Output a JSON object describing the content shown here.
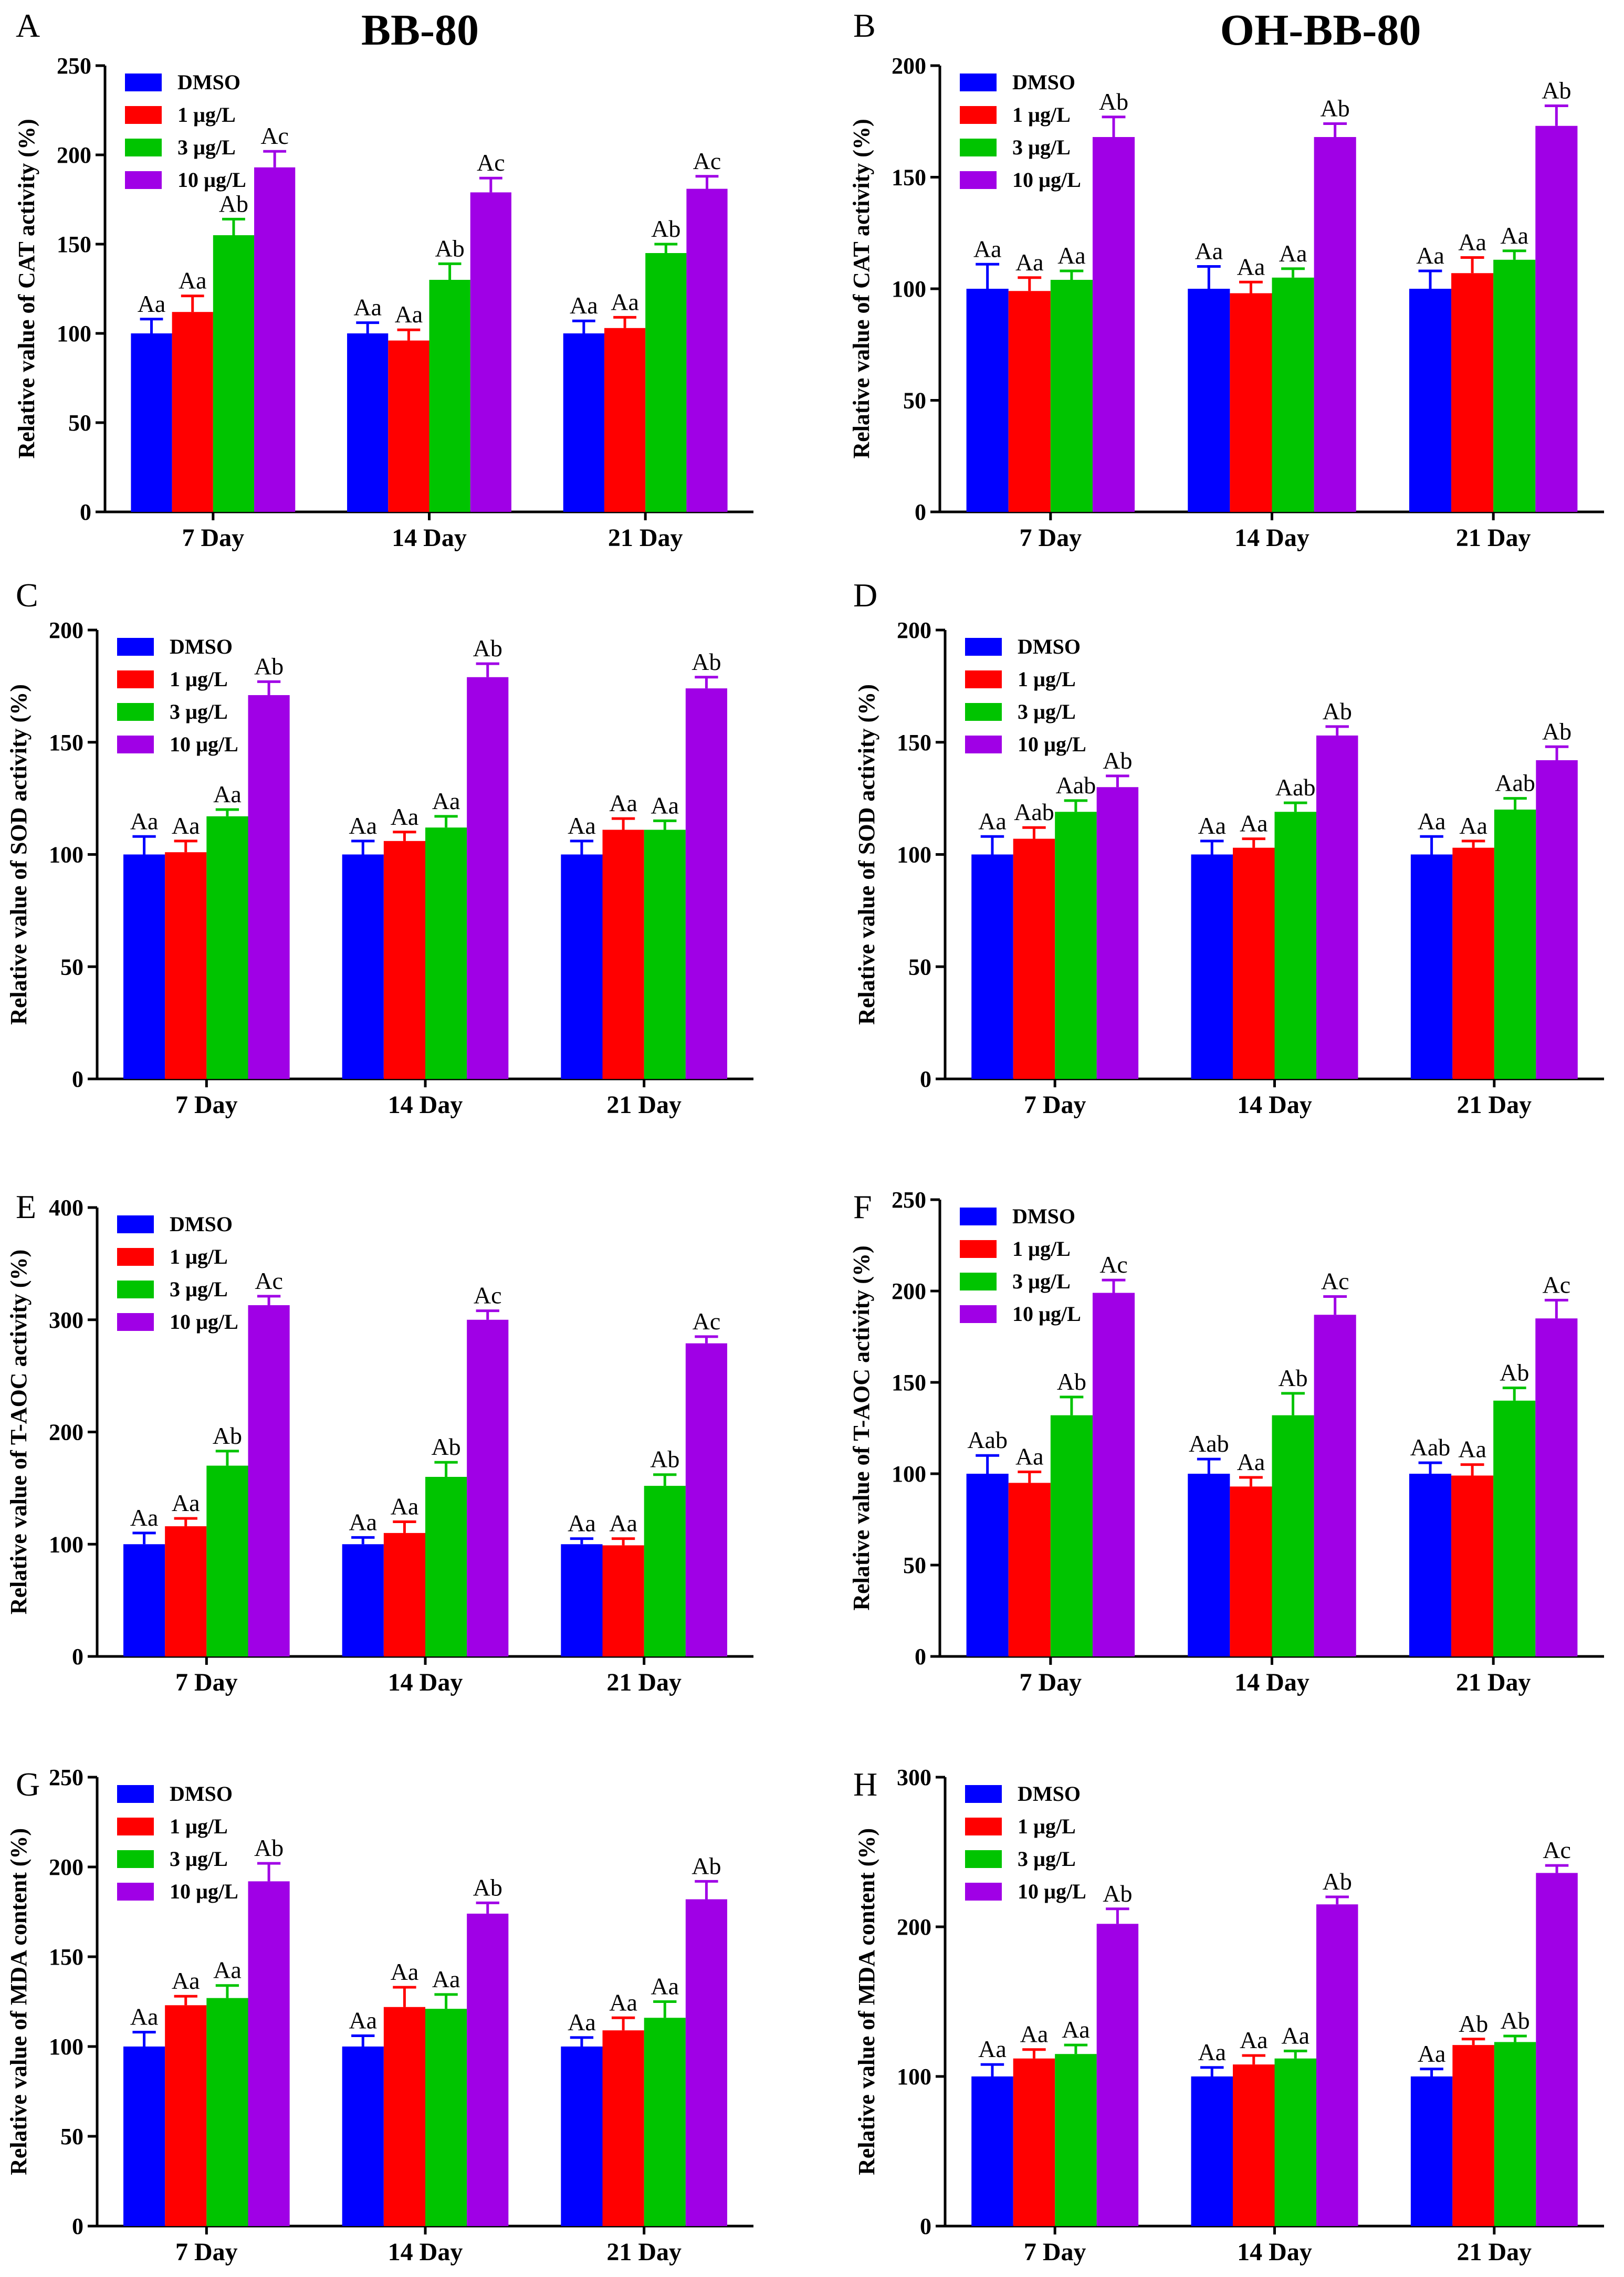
{
  "figure": {
    "group_titles": [
      "BB-80",
      "OH-BB-80"
    ]
  },
  "colors": {
    "DMSO": "#0000ff",
    "1 µg/L": "#ff0000",
    "3 µg/L": "#00c400",
    "10 µg/L": "#a000e6"
  },
  "chart_data": [
    {
      "panel": "A",
      "type": "bar",
      "ylabel": "Relative value of CAT activity (%)",
      "ylim": [
        0,
        250
      ],
      "yticks": [
        0,
        50,
        100,
        150,
        200,
        250
      ],
      "categories": [
        "7 Day",
        "14 Day",
        "21 Day"
      ],
      "legend_position": "top-left",
      "series": [
        {
          "name": "DMSO",
          "values": [
            100,
            100,
            100
          ],
          "errors": [
            8,
            6,
            7
          ],
          "labels": [
            "Aa",
            "Aa",
            "Aa"
          ]
        },
        {
          "name": "1 µg/L",
          "values": [
            112,
            96,
            103
          ],
          "errors": [
            9,
            6,
            6
          ],
          "labels": [
            "Aa",
            "Aa",
            "Aa"
          ]
        },
        {
          "name": "3 µg/L",
          "values": [
            155,
            130,
            145
          ],
          "errors": [
            9,
            9,
            5
          ],
          "labels": [
            "Ab",
            "Ab",
            "Ab"
          ]
        },
        {
          "name": "10 µg/L",
          "values": [
            193,
            179,
            181
          ],
          "errors": [
            9,
            8,
            7
          ],
          "labels": [
            "Ac",
            "Ac",
            "Ac"
          ]
        }
      ]
    },
    {
      "panel": "B",
      "type": "bar",
      "ylabel": "Relative value of CAT activity (%)",
      "ylim": [
        0,
        200
      ],
      "yticks": [
        0,
        50,
        100,
        150,
        200
      ],
      "categories": [
        "7 Day",
        "14 Day",
        "21 Day"
      ],
      "legend_position": "top-left",
      "series": [
        {
          "name": "DMSO",
          "values": [
            100,
            100,
            100
          ],
          "errors": [
            11,
            10,
            8
          ],
          "labels": [
            "Aa",
            "Aa",
            "Aa"
          ]
        },
        {
          "name": "1 µg/L",
          "values": [
            99,
            98,
            107
          ],
          "errors": [
            6,
            5,
            7
          ],
          "labels": [
            "Aa",
            "Aa",
            "Aa"
          ]
        },
        {
          "name": "3 µg/L",
          "values": [
            104,
            105,
            113
          ],
          "errors": [
            4,
            4,
            4
          ],
          "labels": [
            "Aa",
            "Aa",
            "Aa"
          ]
        },
        {
          "name": "10 µg/L",
          "values": [
            168,
            168,
            173
          ],
          "errors": [
            9,
            6,
            9
          ],
          "labels": [
            "Ab",
            "Ab",
            "Ab"
          ]
        }
      ]
    },
    {
      "panel": "C",
      "type": "bar",
      "ylabel": "Relative value of SOD activity (%)",
      "ylim": [
        0,
        200
      ],
      "yticks": [
        0,
        50,
        100,
        150,
        200
      ],
      "categories": [
        "7 Day",
        "14 Day",
        "21 Day"
      ],
      "legend_position": "top-left",
      "series": [
        {
          "name": "DMSO",
          "values": [
            100,
            100,
            100
          ],
          "errors": [
            8,
            6,
            6
          ],
          "labels": [
            "Aa",
            "Aa",
            "Aa"
          ]
        },
        {
          "name": "1 µg/L",
          "values": [
            101,
            106,
            111
          ],
          "errors": [
            5,
            4,
            5
          ],
          "labels": [
            "Aa",
            "Aa",
            "Aa"
          ]
        },
        {
          "name": "3 µg/L",
          "values": [
            117,
            112,
            111
          ],
          "errors": [
            3,
            5,
            4
          ],
          "labels": [
            "Aa",
            "Aa",
            "Aa"
          ]
        },
        {
          "name": "10 µg/L",
          "values": [
            171,
            179,
            174
          ],
          "errors": [
            6,
            6,
            5
          ],
          "labels": [
            "Ab",
            "Ab",
            "Ab"
          ]
        }
      ]
    },
    {
      "panel": "D",
      "type": "bar",
      "ylabel": "Relative value of SOD activity (%)",
      "ylim": [
        0,
        200
      ],
      "yticks": [
        0,
        50,
        100,
        150,
        200
      ],
      "categories": [
        "7 Day",
        "14 Day",
        "21 Day"
      ],
      "legend_position": "top-left",
      "series": [
        {
          "name": "DMSO",
          "values": [
            100,
            100,
            100
          ],
          "errors": [
            8,
            6,
            8
          ],
          "labels": [
            "Aa",
            "Aa",
            "Aa"
          ]
        },
        {
          "name": "1 µg/L",
          "values": [
            107,
            103,
            103
          ],
          "errors": [
            5,
            4,
            3
          ],
          "labels": [
            "Aab",
            "Aa",
            "Aa"
          ]
        },
        {
          "name": "3 µg/L",
          "values": [
            119,
            119,
            120
          ],
          "errors": [
            5,
            4,
            5
          ],
          "labels": [
            "Aab",
            "Aab",
            "Aab"
          ]
        },
        {
          "name": "10 µg/L",
          "values": [
            130,
            153,
            142
          ],
          "errors": [
            5,
            4,
            6
          ],
          "labels": [
            "Ab",
            "Ab",
            "Ab"
          ]
        }
      ]
    },
    {
      "panel": "E",
      "type": "bar",
      "ylabel": "Relative value of T-AOC activity (%)",
      "ylim": [
        0,
        400
      ],
      "yticks": [
        0,
        100,
        200,
        300,
        400
      ],
      "categories": [
        "7 Day",
        "14 Day",
        "21 Day"
      ],
      "legend_position": "top-left",
      "series": [
        {
          "name": "DMSO",
          "values": [
            100,
            100,
            100
          ],
          "errors": [
            10,
            6,
            5
          ],
          "labels": [
            "Aa",
            "Aa",
            "Aa"
          ]
        },
        {
          "name": "1 µg/L",
          "values": [
            116,
            110,
            99
          ],
          "errors": [
            7,
            10,
            6
          ],
          "labels": [
            "Aa",
            "Aa",
            "Aa"
          ]
        },
        {
          "name": "3 µg/L",
          "values": [
            170,
            160,
            152
          ],
          "errors": [
            13,
            13,
            10
          ],
          "labels": [
            "Ab",
            "Ab",
            "Ab"
          ]
        },
        {
          "name": "10 µg/L",
          "values": [
            313,
            300,
            279
          ],
          "errors": [
            8,
            8,
            6
          ],
          "labels": [
            "Ac",
            "Ac",
            "Ac"
          ]
        }
      ]
    },
    {
      "panel": "F",
      "type": "bar",
      "ylabel": "Relative value of T-AOC activity (%)",
      "ylim": [
        0,
        250
      ],
      "yticks": [
        0,
        50,
        100,
        150,
        200,
        250
      ],
      "categories": [
        "7 Day",
        "14 Day",
        "21 Day"
      ],
      "legend_position": "top-left",
      "series": [
        {
          "name": "DMSO",
          "values": [
            100,
            100,
            100
          ],
          "errors": [
            10,
            8,
            6
          ],
          "labels": [
            "Aab",
            "Aab",
            "Aab"
          ]
        },
        {
          "name": "1 µg/L",
          "values": [
            95,
            93,
            99
          ],
          "errors": [
            6,
            5,
            6
          ],
          "labels": [
            "Aa",
            "Aa",
            "Aa"
          ]
        },
        {
          "name": "3 µg/L",
          "values": [
            132,
            132,
            140
          ],
          "errors": [
            10,
            12,
            7
          ],
          "labels": [
            "Ab",
            "Ab",
            "Ab"
          ]
        },
        {
          "name": "10 µg/L",
          "values": [
            199,
            187,
            185
          ],
          "errors": [
            7,
            10,
            10
          ],
          "labels": [
            "Ac",
            "Ac",
            "Ac"
          ]
        }
      ]
    },
    {
      "panel": "G",
      "type": "bar",
      "ylabel": "Relative value of MDA content (%)",
      "ylim": [
        0,
        250
      ],
      "yticks": [
        0,
        50,
        100,
        150,
        200,
        250
      ],
      "categories": [
        "7 Day",
        "14 Day",
        "21 Day"
      ],
      "legend_position": "top-left",
      "series": [
        {
          "name": "DMSO",
          "values": [
            100,
            100,
            100
          ],
          "errors": [
            8,
            6,
            5
          ],
          "labels": [
            "Aa",
            "Aa",
            "Aa"
          ]
        },
        {
          "name": "1 µg/L",
          "values": [
            123,
            122,
            109
          ],
          "errors": [
            5,
            11,
            7
          ],
          "labels": [
            "Aa",
            "Aa",
            "Aa"
          ]
        },
        {
          "name": "3 µg/L",
          "values": [
            127,
            121,
            116
          ],
          "errors": [
            7,
            8,
            9
          ],
          "labels": [
            "Aa",
            "Aa",
            "Aa"
          ]
        },
        {
          "name": "10 µg/L",
          "values": [
            192,
            174,
            182
          ],
          "errors": [
            10,
            6,
            10
          ],
          "labels": [
            "Ab",
            "Ab",
            "Ab"
          ]
        }
      ]
    },
    {
      "panel": "H",
      "type": "bar",
      "ylabel": "Relative value of MDA content (%)",
      "ylim": [
        0,
        300
      ],
      "yticks": [
        0,
        100,
        200,
        300
      ],
      "categories": [
        "7 Day",
        "14 Day",
        "21 Day"
      ],
      "legend_position": "top-left",
      "series": [
        {
          "name": "DMSO",
          "values": [
            100,
            100,
            100
          ],
          "errors": [
            8,
            6,
            5
          ],
          "labels": [
            "Aa",
            "Aa",
            "Aa"
          ]
        },
        {
          "name": "1 µg/L",
          "values": [
            112,
            108,
            121
          ],
          "errors": [
            6,
            6,
            4
          ],
          "labels": [
            "Aa",
            "Aa",
            "Ab"
          ]
        },
        {
          "name": "3 µg/L",
          "values": [
            115,
            112,
            123
          ],
          "errors": [
            6,
            5,
            4
          ],
          "labels": [
            "Aa",
            "Aa",
            "Ab"
          ]
        },
        {
          "name": "10 µg/L",
          "values": [
            202,
            215,
            236
          ],
          "errors": [
            10,
            5,
            5
          ],
          "labels": [
            "Ab",
            "Ab",
            "Ac"
          ]
        }
      ]
    }
  ]
}
